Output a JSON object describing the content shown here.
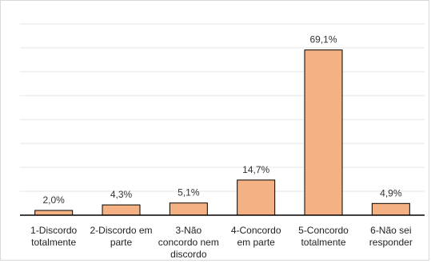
{
  "chart_data": {
    "type": "bar",
    "categories": [
      [
        "1-Discordo",
        "totalmente"
      ],
      [
        "2-Discordo em",
        "parte"
      ],
      [
        "3-Não",
        "concordo nem",
        "discordo"
      ],
      [
        "4-Concordo",
        "em parte"
      ],
      [
        "5-Concordo",
        "totalmente"
      ],
      [
        "6-Não sei",
        "responder"
      ]
    ],
    "values": [
      2.0,
      4.3,
      5.1,
      14.7,
      69.1,
      4.9
    ],
    "value_labels": [
      "2,0%",
      "4,3%",
      "5,1%",
      "14,7%",
      "69,1%",
      "4,9%"
    ],
    "title": "",
    "xlabel": "",
    "ylabel": "",
    "ylim": [
      0,
      80
    ],
    "grid": true,
    "legend": "none",
    "bar_color": "#f4b183",
    "bar_edge_color": "#000000",
    "grid_color": "#e6e6e6"
  }
}
